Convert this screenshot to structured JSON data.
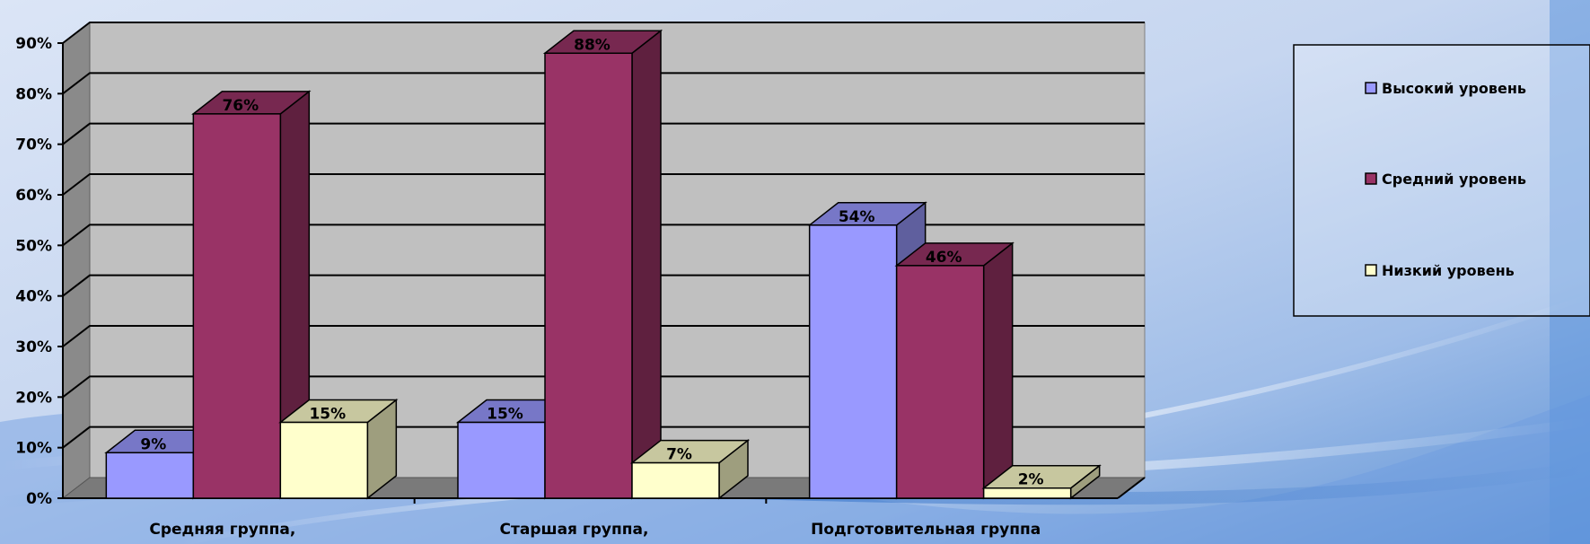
{
  "chart_data": {
    "type": "bar",
    "title": "",
    "xlabel": "",
    "ylabel": "",
    "ylim": [
      0,
      90
    ],
    "y_ticks": [
      "0%",
      "10%",
      "20%",
      "30%",
      "40%",
      "50%",
      "60%",
      "70%",
      "80%",
      "90%"
    ],
    "grid": true,
    "legend_position": "right",
    "categories": [
      "Средняя группа,",
      "Старшая группа,",
      "Подготовительная группа"
    ],
    "series": [
      {
        "name": "Высокий уровень",
        "values": [
          9,
          15,
          54
        ],
        "labels": [
          "9%",
          "15%",
          "54%"
        ],
        "color": "#9999ff"
      },
      {
        "name": "Средний уровень",
        "values": [
          76,
          88,
          46
        ],
        "labels": [
          "76%",
          "88%",
          "46%"
        ],
        "color": "#993366"
      },
      {
        "name": "Низкий уровень",
        "values": [
          15,
          7,
          2
        ],
        "labels": [
          "15%",
          "7%",
          "2%"
        ],
        "color": "#ffffcc"
      }
    ]
  }
}
